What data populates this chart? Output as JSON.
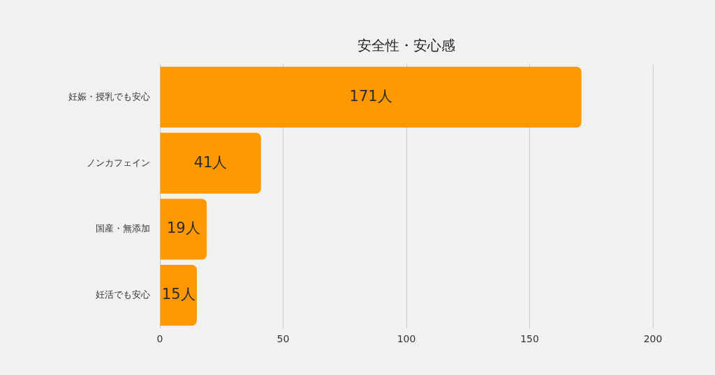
{
  "chart_data": {
    "type": "bar",
    "orientation": "horizontal",
    "title": "安全性・安心感",
    "categories": [
      "妊娠・授乳でも安心",
      "ノンカフェイン",
      "国産・無添加",
      "妊活でも安心"
    ],
    "values": [
      171,
      41,
      19,
      15
    ],
    "value_labels": [
      "171人",
      "41人",
      "19人",
      "15人"
    ],
    "color": "#fe9800",
    "xlim": [
      0,
      200
    ],
    "xticks": [
      0,
      50,
      100,
      150,
      200
    ],
    "grid": "x"
  }
}
